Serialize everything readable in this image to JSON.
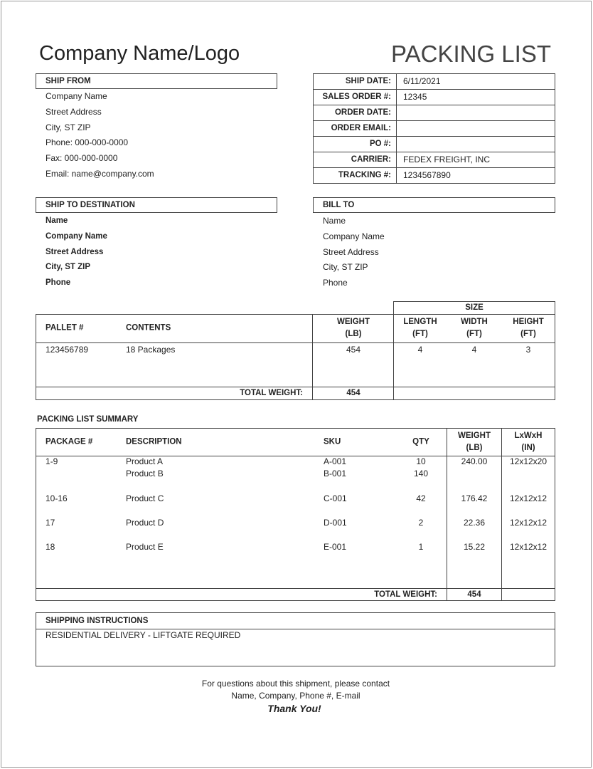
{
  "header": {
    "company_logo": "Company Name/Logo",
    "title": "PACKING LIST"
  },
  "ship_from": {
    "heading": "SHIP FROM",
    "lines": [
      "Company Name",
      "Street Address",
      "City, ST  ZIP",
      "Phone: 000-000-0000",
      "Fax: 000-000-0000",
      "Email: name@company.com"
    ]
  },
  "order_info": [
    {
      "label": "SHIP DATE:",
      "value": "6/11/2021"
    },
    {
      "label": "SALES ORDER #:",
      "value": "12345"
    },
    {
      "label": "ORDER DATE:",
      "value": ""
    },
    {
      "label": "ORDER EMAIL:",
      "value": ""
    },
    {
      "label": "PO #:",
      "value": ""
    },
    {
      "label": "CARRIER:",
      "value": "FEDEX FREIGHT, INC"
    },
    {
      "label": "TRACKING #:",
      "value": "1234567890"
    }
  ],
  "ship_to": {
    "heading": "SHIP TO DESTINATION",
    "lines": [
      "Name",
      "Company Name",
      "Street Address",
      "City, ST  ZIP",
      "Phone"
    ]
  },
  "bill_to": {
    "heading": "BILL TO",
    "lines": [
      "Name",
      "Company Name",
      "Street Address",
      "City, ST  ZIP",
      "Phone"
    ]
  },
  "pallet_table": {
    "size_heading": "SIZE",
    "headers": {
      "pallet": "PALLET #",
      "contents": "CONTENTS",
      "weight": "WEIGHT\n(LB)",
      "length": "LENGTH\n(FT)",
      "width": "WIDTH\n(FT)",
      "height": "HEIGHT\n(FT)"
    },
    "rows": [
      {
        "pallet": "123456789",
        "contents": "18 Packages",
        "weight": "454",
        "length": "4",
        "width": "4",
        "height": "3"
      }
    ],
    "total_label": "TOTAL WEIGHT:",
    "total_value": "454"
  },
  "summary": {
    "heading": "PACKING LIST SUMMARY",
    "headers": {
      "package": "PACKAGE #",
      "description": "DESCRIPTION",
      "sku": "SKU",
      "qty": "QTY",
      "weight": "WEIGHT\n(LB)",
      "dims": "LxWxH\n(IN)"
    },
    "rows": [
      {
        "package": "1-9",
        "description": "Product A",
        "sku": "A-001",
        "qty": "10",
        "weight": "240.00",
        "dims": "12x12x20"
      },
      {
        "package": "",
        "description": "Product B",
        "sku": "B-001",
        "qty": "140",
        "weight": "",
        "dims": ""
      },
      {
        "package": "10-16",
        "description": "Product C",
        "sku": "C-001",
        "qty": "42",
        "weight": "176.42",
        "dims": "12x12x12"
      },
      {
        "package": "17",
        "description": "Product D",
        "sku": "D-001",
        "qty": "2",
        "weight": "22.36",
        "dims": "12x12x12"
      },
      {
        "package": "18",
        "description": "Product E",
        "sku": "E-001",
        "qty": "1",
        "weight": "15.22",
        "dims": "12x12x12"
      }
    ],
    "total_label": "TOTAL WEIGHT:",
    "total_value": "454"
  },
  "instructions": {
    "heading": "SHIPPING INSTRUCTIONS",
    "text": "RESIDENTIAL DELIVERY - LIFTGATE REQUIRED"
  },
  "footer": {
    "line1": "For questions about this shipment, please contact",
    "line2": "Name, Company, Phone #, E-mail",
    "thanks": "Thank You!"
  }
}
